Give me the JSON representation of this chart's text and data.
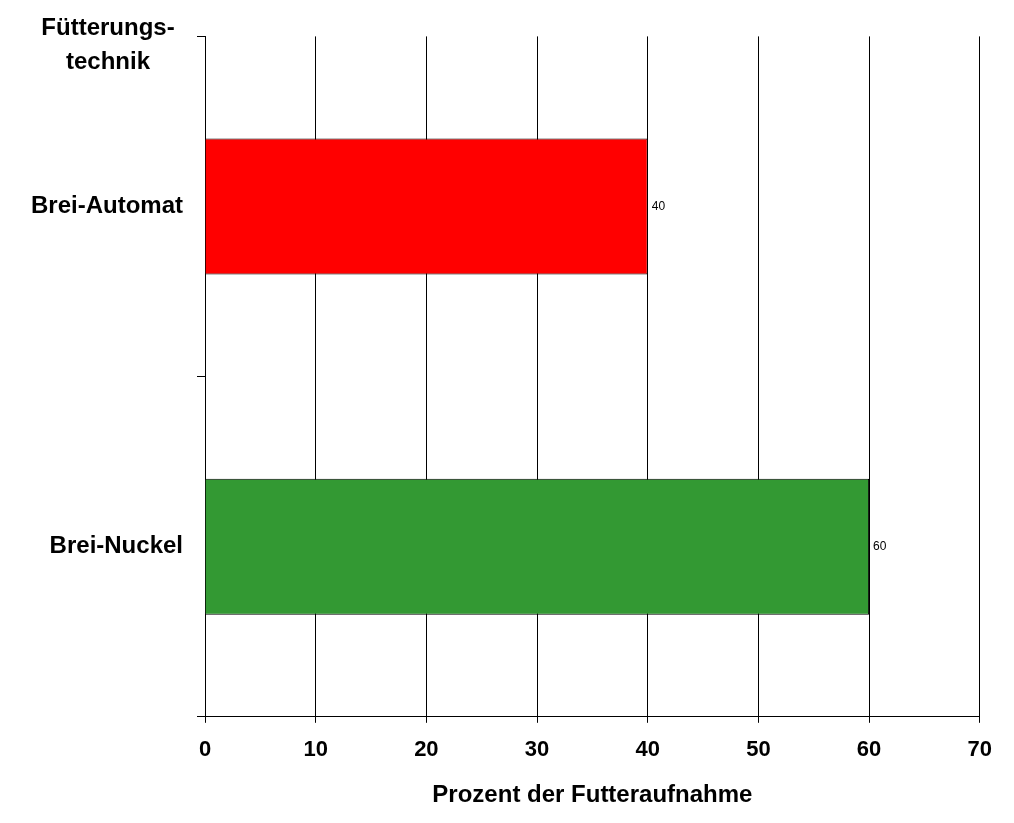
{
  "chart_data": {
    "type": "bar",
    "orientation": "horizontal",
    "ylabel": "Fütterungs-technik",
    "xlabel": "Prozent der Futteraufnahme",
    "categories": [
      "Brei-Automat",
      "Brei-Nuckel"
    ],
    "values": [
      40,
      60
    ],
    "colors": [
      "#ff0000",
      "#339933"
    ],
    "xlim": [
      0,
      70
    ],
    "xticks": [
      0,
      10,
      20,
      30,
      40,
      50,
      60,
      70
    ],
    "grid": "x",
    "data_labels": true
  }
}
